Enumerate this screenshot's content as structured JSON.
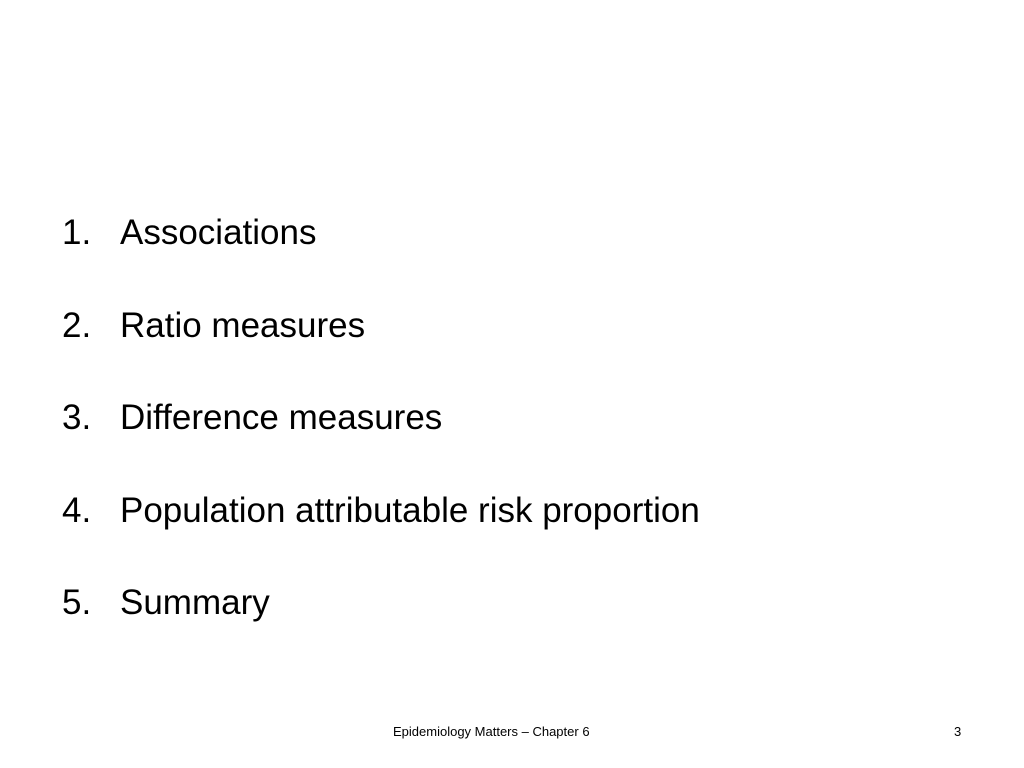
{
  "slide": {
    "items": [
      {
        "number": "1.",
        "label": "Associations"
      },
      {
        "number": "2.",
        "label": "Ratio measures"
      },
      {
        "number": "3.",
        "label": "Difference measures"
      },
      {
        "number": "4.",
        "label": "Population attributable risk proportion"
      },
      {
        "number": "5.",
        "label": "Summary"
      }
    ],
    "footer": "Epidemiology Matters – Chapter 6",
    "page_number": "3"
  }
}
